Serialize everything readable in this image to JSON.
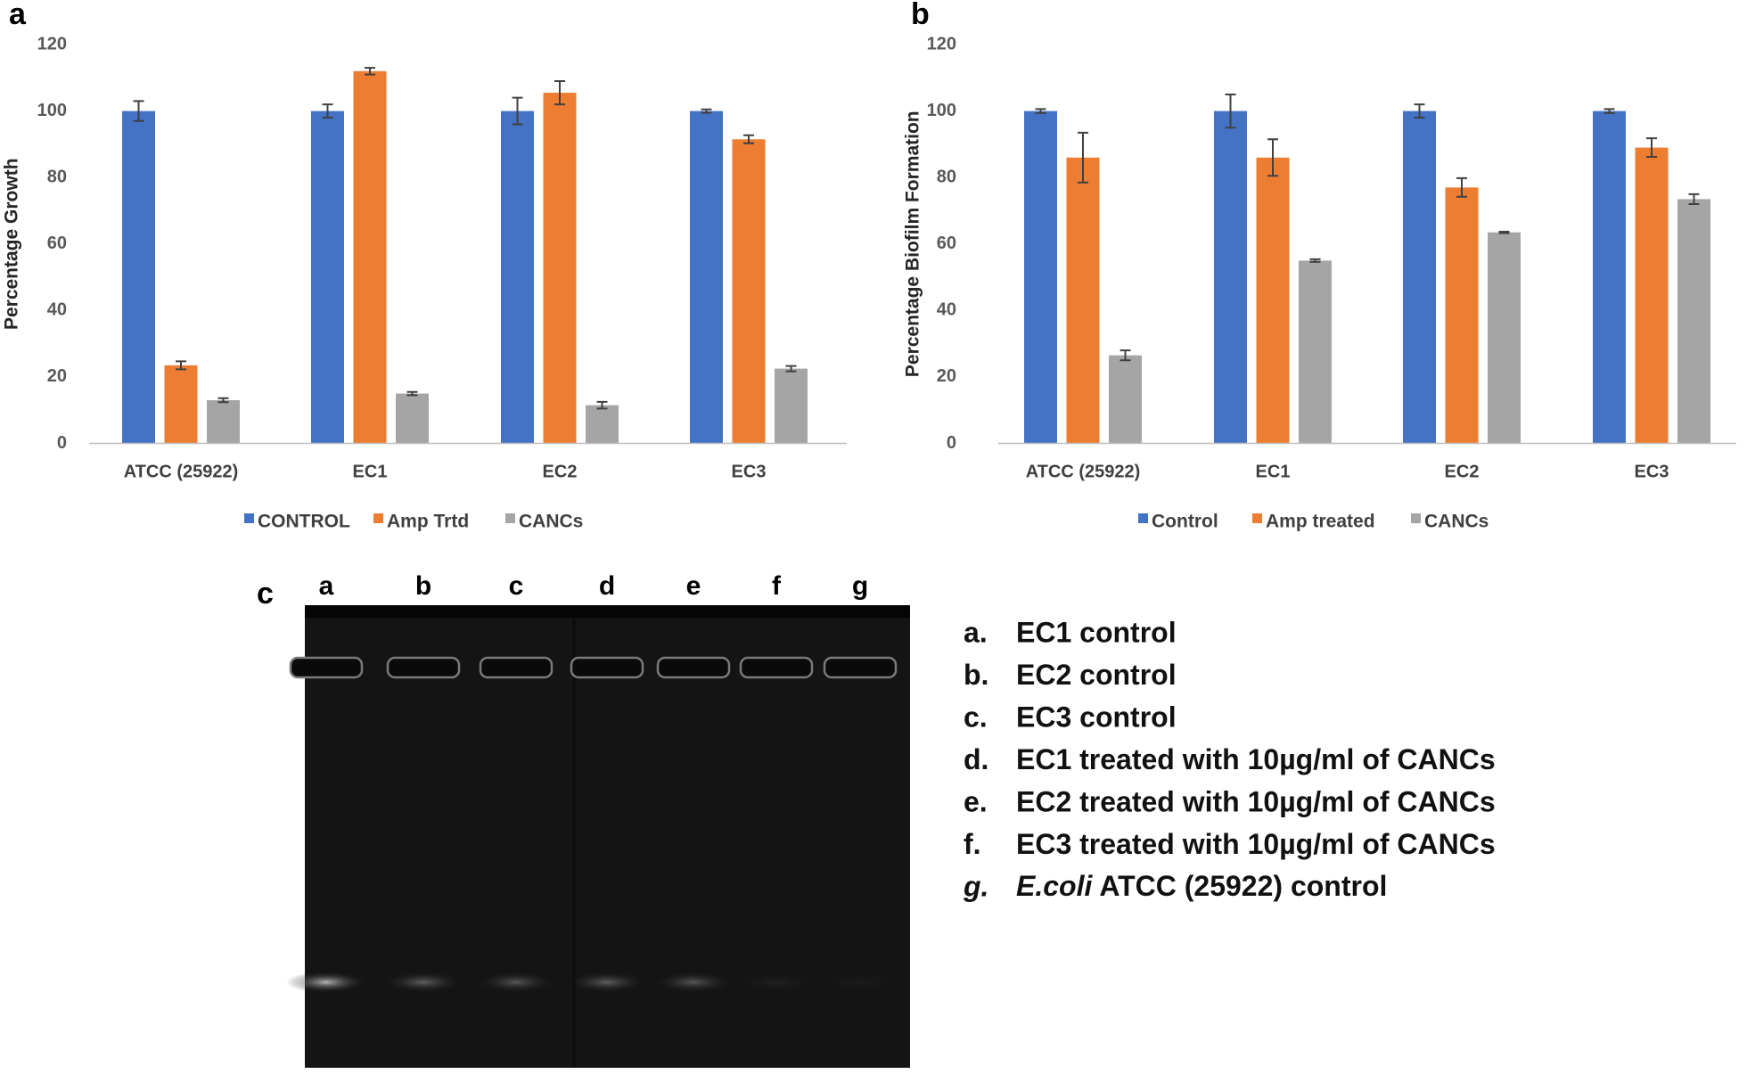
{
  "chart_data": [
    {
      "type": "bar",
      "panel": "a",
      "y_label": "Percentage Growth",
      "categories": [
        "ATCC (25922)",
        "EC1",
        "EC2",
        "EC3"
      ],
      "series": [
        {
          "name": "CONTROL",
          "color": "#4472c4",
          "values": [
            100,
            100,
            100,
            100
          ],
          "errors": [
            3,
            2,
            4,
            0.5
          ]
        },
        {
          "name": "Amp Trtd",
          "color": "#ed7d31",
          "values": [
            23.5,
            112,
            105.5,
            91.5
          ],
          "errors": [
            1.2,
            1,
            3.5,
            1.2
          ]
        },
        {
          "name": "CANCs",
          "color": "#a5a5a5",
          "values": [
            13,
            15,
            11.5,
            22.5
          ],
          "errors": [
            0.6,
            0.5,
            1,
            0.8
          ]
        }
      ],
      "ylim": [
        0,
        120
      ],
      "yticks": [
        0,
        20,
        40,
        60,
        80,
        100,
        120
      ],
      "grid": false,
      "legend": "bottom"
    },
    {
      "type": "bar",
      "panel": "b",
      "y_label": "Percentage Biofilm Formation",
      "categories": [
        "ATCC (25922)",
        "EC1",
        "EC2",
        "EC3"
      ],
      "series": [
        {
          "name": "Control",
          "color": "#4472c4",
          "values": [
            100,
            100,
            100,
            100
          ],
          "errors": [
            0.6,
            5,
            2,
            0.6
          ]
        },
        {
          "name": "Amp treated",
          "color": "#ed7d31",
          "values": [
            86,
            86,
            77,
            89
          ],
          "errors": [
            7.5,
            5.5,
            2.8,
            2.8
          ]
        },
        {
          "name": "CANCs",
          "color": "#a5a5a5",
          "values": [
            26.5,
            55,
            63.5,
            73.5
          ],
          "errors": [
            1.5,
            0.4,
            0.2,
            1.5
          ]
        }
      ],
      "ylim": [
        0,
        120
      ],
      "yticks": [
        0,
        20,
        40,
        60,
        80,
        100,
        120
      ],
      "grid": false,
      "legend": "bottom"
    }
  ],
  "gel_panel": {
    "panel": "c",
    "lanes": [
      "a",
      "b",
      "c",
      "d",
      "e",
      "f",
      "g"
    ],
    "items": [
      {
        "marker": "a.",
        "text": "EC1 control"
      },
      {
        "marker": "b.",
        "text": "EC2 control"
      },
      {
        "marker": "c.",
        "text": "EC3 control"
      },
      {
        "marker": "d.",
        "text": "EC1 treated with 10µg/ml of CANCs"
      },
      {
        "marker": "e.",
        "text": "EC2 treated with 10µg/ml of CANCs"
      },
      {
        "marker": "f.",
        "text": "EC3 treated with 10µg/ml of CANCs"
      },
      {
        "marker": "g.",
        "italic": "E.coli",
        "text": "ATCC (25922)  control"
      }
    ]
  }
}
